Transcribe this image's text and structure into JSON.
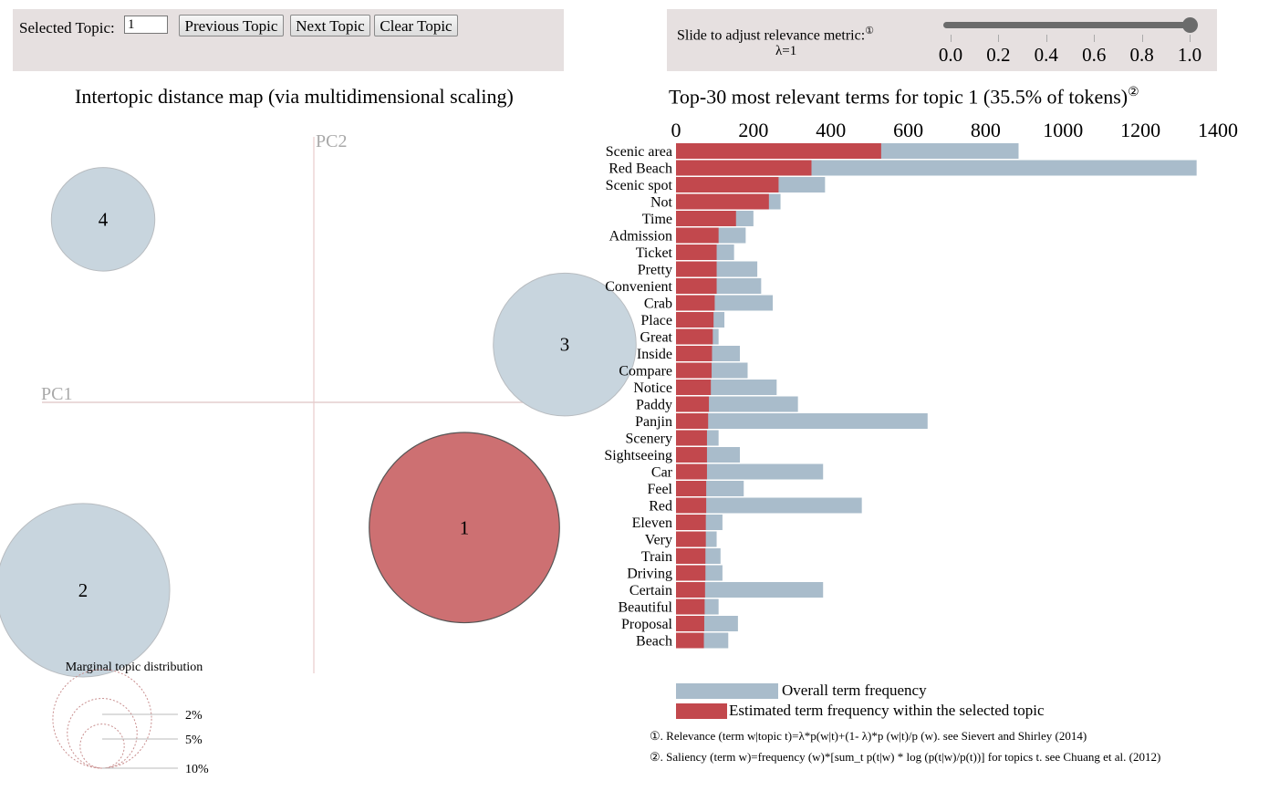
{
  "topic_control": {
    "label": "Selected Topic:",
    "value": "1",
    "previous_label": "Previous Topic",
    "next_label": "Next Topic",
    "clear_label": "Clear Topic"
  },
  "lambda_control": {
    "label": "Slide to adjust relevance metric:",
    "label_marker": "①",
    "value_text": "λ=1",
    "value": 1.0,
    "ticks": [
      "0.0",
      "0.2",
      "0.4",
      "0.6",
      "0.8",
      "1.0"
    ]
  },
  "colors": {
    "overall": "#a9bccb",
    "topic": "#c2484d",
    "selected_circle": "#cd7072",
    "circle": "#c8d5de"
  },
  "chart_data": [
    {
      "type": "scatter",
      "title": "Intertopic distance map (via multidimensional scaling)",
      "xlabel": "PC1",
      "ylabel": "PC2",
      "grid": false,
      "topics": [
        {
          "label": "1",
          "x": 0.3,
          "y": -0.26,
          "size": 35.5,
          "selected": true
        },
        {
          "label": "2",
          "x": -0.46,
          "y": -0.39,
          "size": 29.5,
          "selected": false
        },
        {
          "label": "3",
          "x": 0.5,
          "y": 0.12,
          "size": 20.0,
          "selected": false
        },
        {
          "label": "4",
          "x": -0.42,
          "y": 0.38,
          "size": 10.5,
          "selected": false
        }
      ],
      "size_legend": {
        "title": "Marginal topic distribution",
        "entries": [
          {
            "label": "2%",
            "value": 2
          },
          {
            "label": "5%",
            "value": 5
          },
          {
            "label": "10%",
            "value": 10
          }
        ]
      }
    },
    {
      "type": "bar",
      "orientation": "horizontal",
      "title": "Top-30 most relevant terms for topic 1 (35.5% of tokens)",
      "title_marker": "②",
      "xlim": [
        0,
        1400
      ],
      "x_ticks": [
        "0",
        "200",
        "400",
        "600",
        "800",
        "1000",
        "1200",
        "1400"
      ],
      "categories": [
        "Scenic area",
        "Red Beach",
        "Scenic spot",
        "Not",
        "Time",
        "Admission",
        "Ticket",
        "Pretty",
        "Convenient",
        "Crab",
        "Place",
        "Great",
        "Inside",
        "Compare",
        "Notice",
        "Paddy",
        "Panjin",
        "Scenery",
        "Sightseeing",
        "Car",
        "Feel",
        "Red",
        "Eleven",
        "Very",
        "Train",
        "Driving",
        "Certain",
        "Beautiful",
        "Proposal",
        "Beach"
      ],
      "series": [
        {
          "name": "Overall term frequency",
          "values": [
            885,
            1345,
            385,
            270,
            200,
            180,
            150,
            210,
            220,
            250,
            125,
            110,
            165,
            185,
            260,
            315,
            650,
            110,
            165,
            380,
            175,
            480,
            120,
            105,
            115,
            120,
            380,
            110,
            160,
            135
          ]
        },
        {
          "name": "Estimated term frequency within the selected topic",
          "values": [
            530,
            350,
            265,
            240,
            155,
            110,
            105,
            105,
            105,
            100,
            97,
            95,
            93,
            92,
            90,
            85,
            83,
            80,
            80,
            80,
            78,
            78,
            77,
            77,
            76,
            76,
            75,
            74,
            73,
            72
          ]
        }
      ],
      "legend_position": "bottom"
    }
  ],
  "notes": [
    "①. Relevance (term w|topic t)=λ*p(w|t)+(1- λ)*p (w|t)/p (w). see Sievert and Shirley (2014)",
    "②. Saliency (term w)=frequency (w)*[sum_t p(t|w) * log (p(t|w)/p(t))] for topics t. see Chuang et al. (2012)"
  ]
}
